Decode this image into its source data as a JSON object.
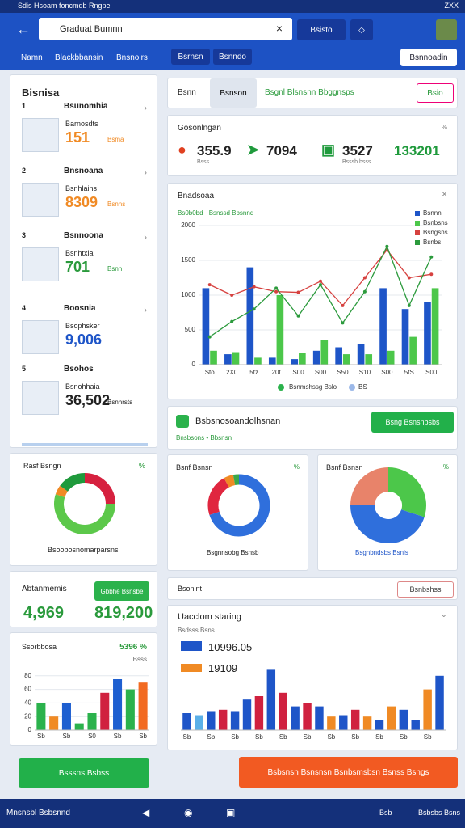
{
  "status": {
    "left": "Sdis Hsoam foncmdb Rngpe",
    "right": "ZXX"
  },
  "header": {
    "search": "Graduat Bumnn",
    "button": "Bsisto"
  },
  "nav": {
    "tabs": [
      "Namn",
      "Blackbbansin",
      "Bnsnoirs",
      "Bsrnsn",
      "Bsnndo"
    ],
    "right": "Bsnnoadin"
  },
  "sidebar": {
    "title": "Bisnisa",
    "items": [
      {
        "num": "1",
        "heading": "Bsunomhia",
        "label": "Barnosdts",
        "value": "151",
        "unit": "Bsma"
      },
      {
        "num": "2",
        "heading": "Bnsnoana",
        "label": "Bsnhlains",
        "value": "8309",
        "unit": "Bsnns"
      },
      {
        "num": "3",
        "heading": "Bsnnoona",
        "label": "Bsnhtxia",
        "value": "701",
        "unit": "Bsnn"
      },
      {
        "num": "4",
        "heading": "Boosnia",
        "label": "Bsophsker",
        "value": "9,006"
      },
      {
        "num": "5",
        "heading": "Bsohos",
        "label": "Bsnohhaia",
        "value": "36,502",
        "unit": "Bsnhrsts"
      }
    ]
  },
  "left_donut": {
    "title": "Rasf Bsngn",
    "badge": "%",
    "caption": "Bsoobosnomarparsns",
    "values": [
      25,
      55,
      5,
      15
    ],
    "colors": [
      "#d6213f",
      "#5cc84a",
      "#f08a24",
      "#1f9a3c"
    ]
  },
  "left_kpi": {
    "title": "Abtanmemis",
    "badge": "Gbbhe Bsnsbe",
    "values": [
      "4,969",
      "819,200"
    ]
  },
  "left_bars": {
    "title": "Ssorbbosa",
    "value": "5396 %",
    "sub": "Bsss",
    "categories": [
      "Sb",
      null,
      "Sb",
      null,
      "S0",
      null,
      "Sb",
      null,
      "Sb"
    ],
    "values": [
      40,
      20,
      40,
      10,
      25,
      55,
      75,
      60,
      70
    ],
    "colors": [
      "#2bb24c",
      "#f08a24",
      "#1e5fd0",
      "#2bb24c",
      "#2bb24c",
      "#d0213f",
      "#1e5fd0",
      "#2bb24c",
      "#f26a21"
    ],
    "ylim": [
      0,
      100
    ],
    "yticks": [
      0,
      20,
      40,
      60,
      80
    ]
  },
  "left_button": "Bsssns Bsbss",
  "tabs": {
    "items": [
      "Bsnn",
      "Bsnson",
      "Bsgnl Blsnsnn Bbggnsps"
    ],
    "button": "Bsio"
  },
  "kpi": {
    "title": "Gosonlngan",
    "badge": "%",
    "items": [
      {
        "value": "355.9",
        "sub": "Bsss"
      },
      {
        "value": "7094"
      },
      {
        "value": "3527",
        "sub": "Bsssb bsss"
      },
      {
        "value": "133201"
      }
    ]
  },
  "combo": {
    "title": "Bnadsoaa",
    "subtitle": "Bs0b0bd · Bsnssd Bbsnnd",
    "categories": [
      "Sto",
      "2X0",
      "5tz",
      "20t",
      "S00",
      "S00",
      "S50",
      "S10",
      "S00",
      "5tS",
      "S00"
    ],
    "series": [
      {
        "name": "Bsnnn",
        "kind": "bar",
        "color": "#1e55c8",
        "values": [
          1100,
          150,
          1400,
          100,
          80,
          200,
          250,
          300,
          1100,
          800,
          900
        ]
      },
      {
        "name": "Bsnbsns",
        "kind": "bar",
        "color": "#4cc74a",
        "values": [
          200,
          180,
          100,
          1000,
          170,
          350,
          150,
          150,
          200,
          400,
          1100
        ]
      },
      {
        "name": "Bsngsns",
        "kind": "line",
        "color": "#d6413f",
        "values": [
          1150,
          1000,
          1120,
          1050,
          1040,
          1200,
          850,
          1250,
          1650,
          1250,
          1300
        ]
      },
      {
        "name": "Bsnbs",
        "kind": "line",
        "color": "#2b9a3c",
        "values": [
          400,
          620,
          800,
          1100,
          700,
          1150,
          600,
          1050,
          1700,
          850,
          1550
        ]
      }
    ],
    "ylim": [
      0,
      2000
    ],
    "yticks": [
      0,
      500,
      1000,
      1500,
      2000
    ],
    "footer": [
      "Bsnmshssg Bslo",
      "BS"
    ]
  },
  "banner": {
    "title": "Bsbsnosoandolhsnan",
    "sub": "Bnsbsons • Bbsnsn",
    "button": "Bsng Bsnsnbsbs"
  },
  "donut_a": {
    "title": "Bsnf Bsnsn",
    "badge": "%",
    "caption": "Bsgnnsobg Bsnsb",
    "values": [
      70,
      22,
      5,
      3
    ],
    "colors": [
      "#2f6fdc",
      "#e0263f",
      "#f08a24",
      "#3aa84a"
    ]
  },
  "donut_b": {
    "title": "Bsnf Bsnsn",
    "badge": "%",
    "caption": "Bsgnbndsbs Bsnls",
    "values": [
      30,
      45,
      25
    ],
    "colors": [
      "#4cc74a",
      "#2f6fdc",
      "#e8836a"
    ]
  },
  "section": {
    "title": "Bsonlnt",
    "button": "Bsnbshss"
  },
  "bars": {
    "title": "Uacclom staring",
    "sub": "Bsdsss Bsns",
    "legend": [
      "10996.05",
      "19109"
    ],
    "categories": [
      "Sb",
      null,
      "Sb",
      null,
      "Sb",
      null,
      "Sb",
      null,
      "Sb",
      null,
      "Sb",
      null,
      "Sb",
      null,
      "Sb",
      null,
      "Sb",
      null,
      "Sb",
      null,
      "Sb",
      null
    ],
    "values": [
      25,
      22,
      28,
      30,
      28,
      45,
      50,
      90,
      55,
      35,
      40,
      35,
      20,
      22,
      30,
      20,
      15,
      35,
      30,
      15,
      60,
      80
    ],
    "colors": [
      "#1e55c8",
      "#5bb0e8",
      "#1e55c8",
      "#d0213f",
      "#1e55c8",
      "#1e55c8",
      "#d0213f",
      "#1e55c8",
      "#d0213f",
      "#1e55c8",
      "#d0213f",
      "#1e55c8",
      "#f08a24",
      "#1e55c8",
      "#d0213f",
      "#f08a24",
      "#1e55c8",
      "#f08a24",
      "#1e55c8",
      "#1e55c8",
      "#f08a24",
      "#1e55c8"
    ],
    "ylim": [
      0,
      100
    ]
  },
  "orange_button": "Bsbsnsn Bsnsnsn Bsnbsmsbsn Bsnss Bsngs",
  "bottom": {
    "left": "Mnsnsbl Bsbsnnd",
    "right": [
      "Bsb",
      "Bsbsbs Bsns"
    ]
  }
}
